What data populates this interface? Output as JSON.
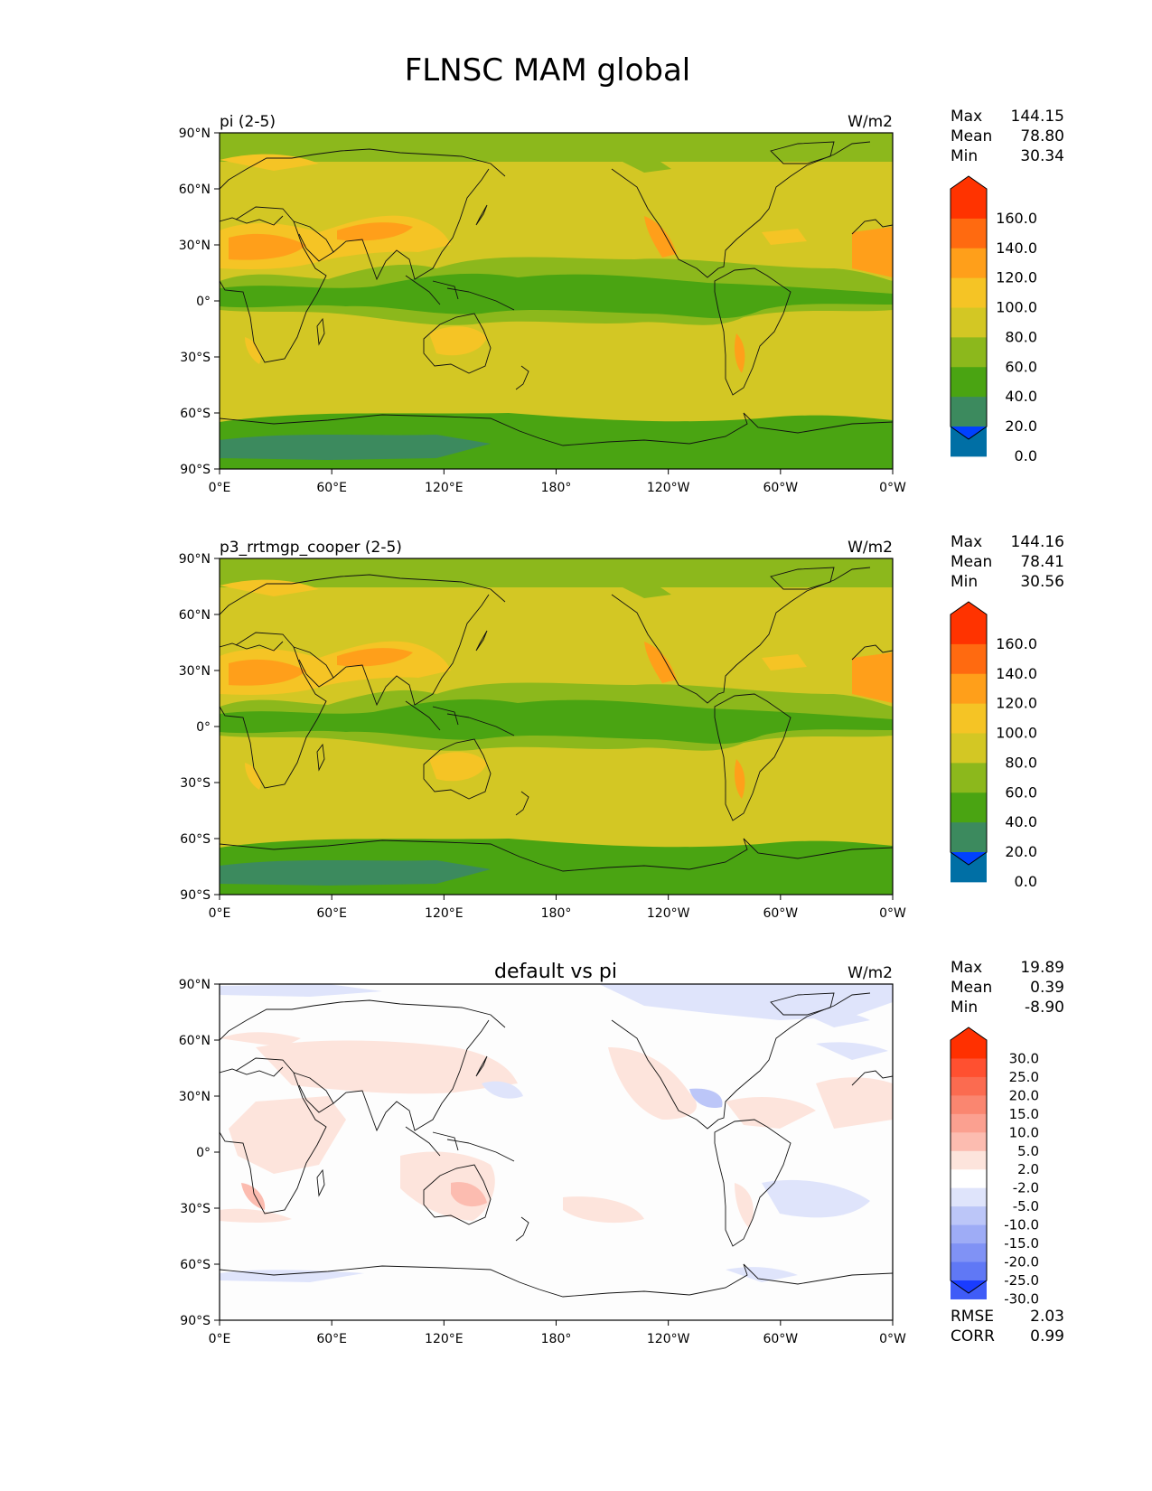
{
  "figure": {
    "title": "FLNSC MAM global"
  },
  "axes": {
    "lat_ticks": [
      "90°N",
      "60°N",
      "30°N",
      "0°",
      "30°S",
      "60°S",
      "90°S"
    ],
    "lon_ticks": [
      "0°E",
      "60°E",
      "120°E",
      "180°",
      "120°W",
      "60°W",
      "0°W"
    ]
  },
  "panels": [
    {
      "left_title": "pi (2-5)",
      "center_title": "",
      "units": "W/m2",
      "stats": {
        "max_label": "Max",
        "max": "144.15",
        "mean_label": "Mean",
        "mean": "78.80",
        "min_label": "Min",
        "min": "30.34"
      },
      "colorbar": {
        "labels": [
          "160.0",
          "140.0",
          "120.0",
          "100.0",
          "80.0",
          "60.0",
          "40.0",
          "20.0",
          "0.0"
        ],
        "colors_top_to_bottom": [
          "#ff3300",
          "#ff6a10",
          "#ff9f1a",
          "#f5c425",
          "#d3c724",
          "#8cb81c",
          "#4aa412",
          "#3c8a5e",
          "#006fa5",
          "#0041ff"
        ]
      },
      "footer": null
    },
    {
      "left_title": "p3_rrtmgp_cooper (2-5)",
      "center_title": "",
      "units": "W/m2",
      "stats": {
        "max_label": "Max",
        "max": "144.16",
        "mean_label": "Mean",
        "mean": "78.41",
        "min_label": "Min",
        "min": "30.56"
      },
      "colorbar": {
        "labels": [
          "160.0",
          "140.0",
          "120.0",
          "100.0",
          "80.0",
          "60.0",
          "40.0",
          "20.0",
          "0.0"
        ],
        "colors_top_to_bottom": [
          "#ff3300",
          "#ff6a10",
          "#ff9f1a",
          "#f5c425",
          "#d3c724",
          "#8cb81c",
          "#4aa412",
          "#3c8a5e",
          "#006fa5",
          "#0041ff"
        ]
      },
      "footer": null
    },
    {
      "left_title": "",
      "center_title": "default vs pi",
      "units": "W/m2",
      "stats": {
        "max_label": "Max",
        "max": "19.89",
        "mean_label": "Mean",
        "mean": "0.39",
        "min_label": "Min",
        "min": "-8.90"
      },
      "colorbar": {
        "labels": [
          "30.0",
          "25.0",
          "20.0",
          "15.0",
          "10.0",
          "5.0",
          "2.0",
          "-2.0",
          "-5.0",
          "-10.0",
          "-15.0",
          "-20.0",
          "-25.0",
          "-30.0"
        ],
        "colors_top_to_bottom": [
          "#ff3000",
          "#ff5030",
          "#fb6b50",
          "#fa8670",
          "#fba090",
          "#fcbcb0",
          "#fde4dc",
          "#ffffff",
          "#dfe4fb",
          "#bcc6f8",
          "#9eacf6",
          "#8092f5",
          "#6078f5",
          "#3f5cf7",
          "#1a3cff"
        ]
      },
      "footer": {
        "rmse_label": "RMSE",
        "rmse": "2.03",
        "corr_label": "CORR",
        "corr": "0.99"
      }
    }
  ]
}
